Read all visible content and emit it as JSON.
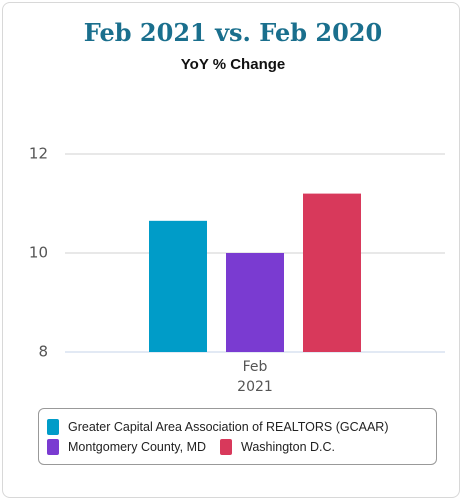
{
  "chart_data": {
    "type": "bar",
    "title": "Feb 2021 vs. Feb 2020",
    "subtitle": "YoY % Change",
    "categories": [
      "Feb 2021"
    ],
    "series": [
      {
        "name": "Greater Capital Area Association of REALTORS (GCAAR)",
        "color": "#009cc8",
        "values": [
          10.65
        ]
      },
      {
        "name": "Montgomery County, MD",
        "color": "#7a3bd1",
        "values": [
          10.0
        ]
      },
      {
        "name": "Washington D.C.",
        "color": "#d8395b",
        "values": [
          11.2
        ]
      }
    ],
    "ylim": [
      8,
      12
    ],
    "yticks": [
      8,
      10,
      12
    ],
    "grid": true
  }
}
